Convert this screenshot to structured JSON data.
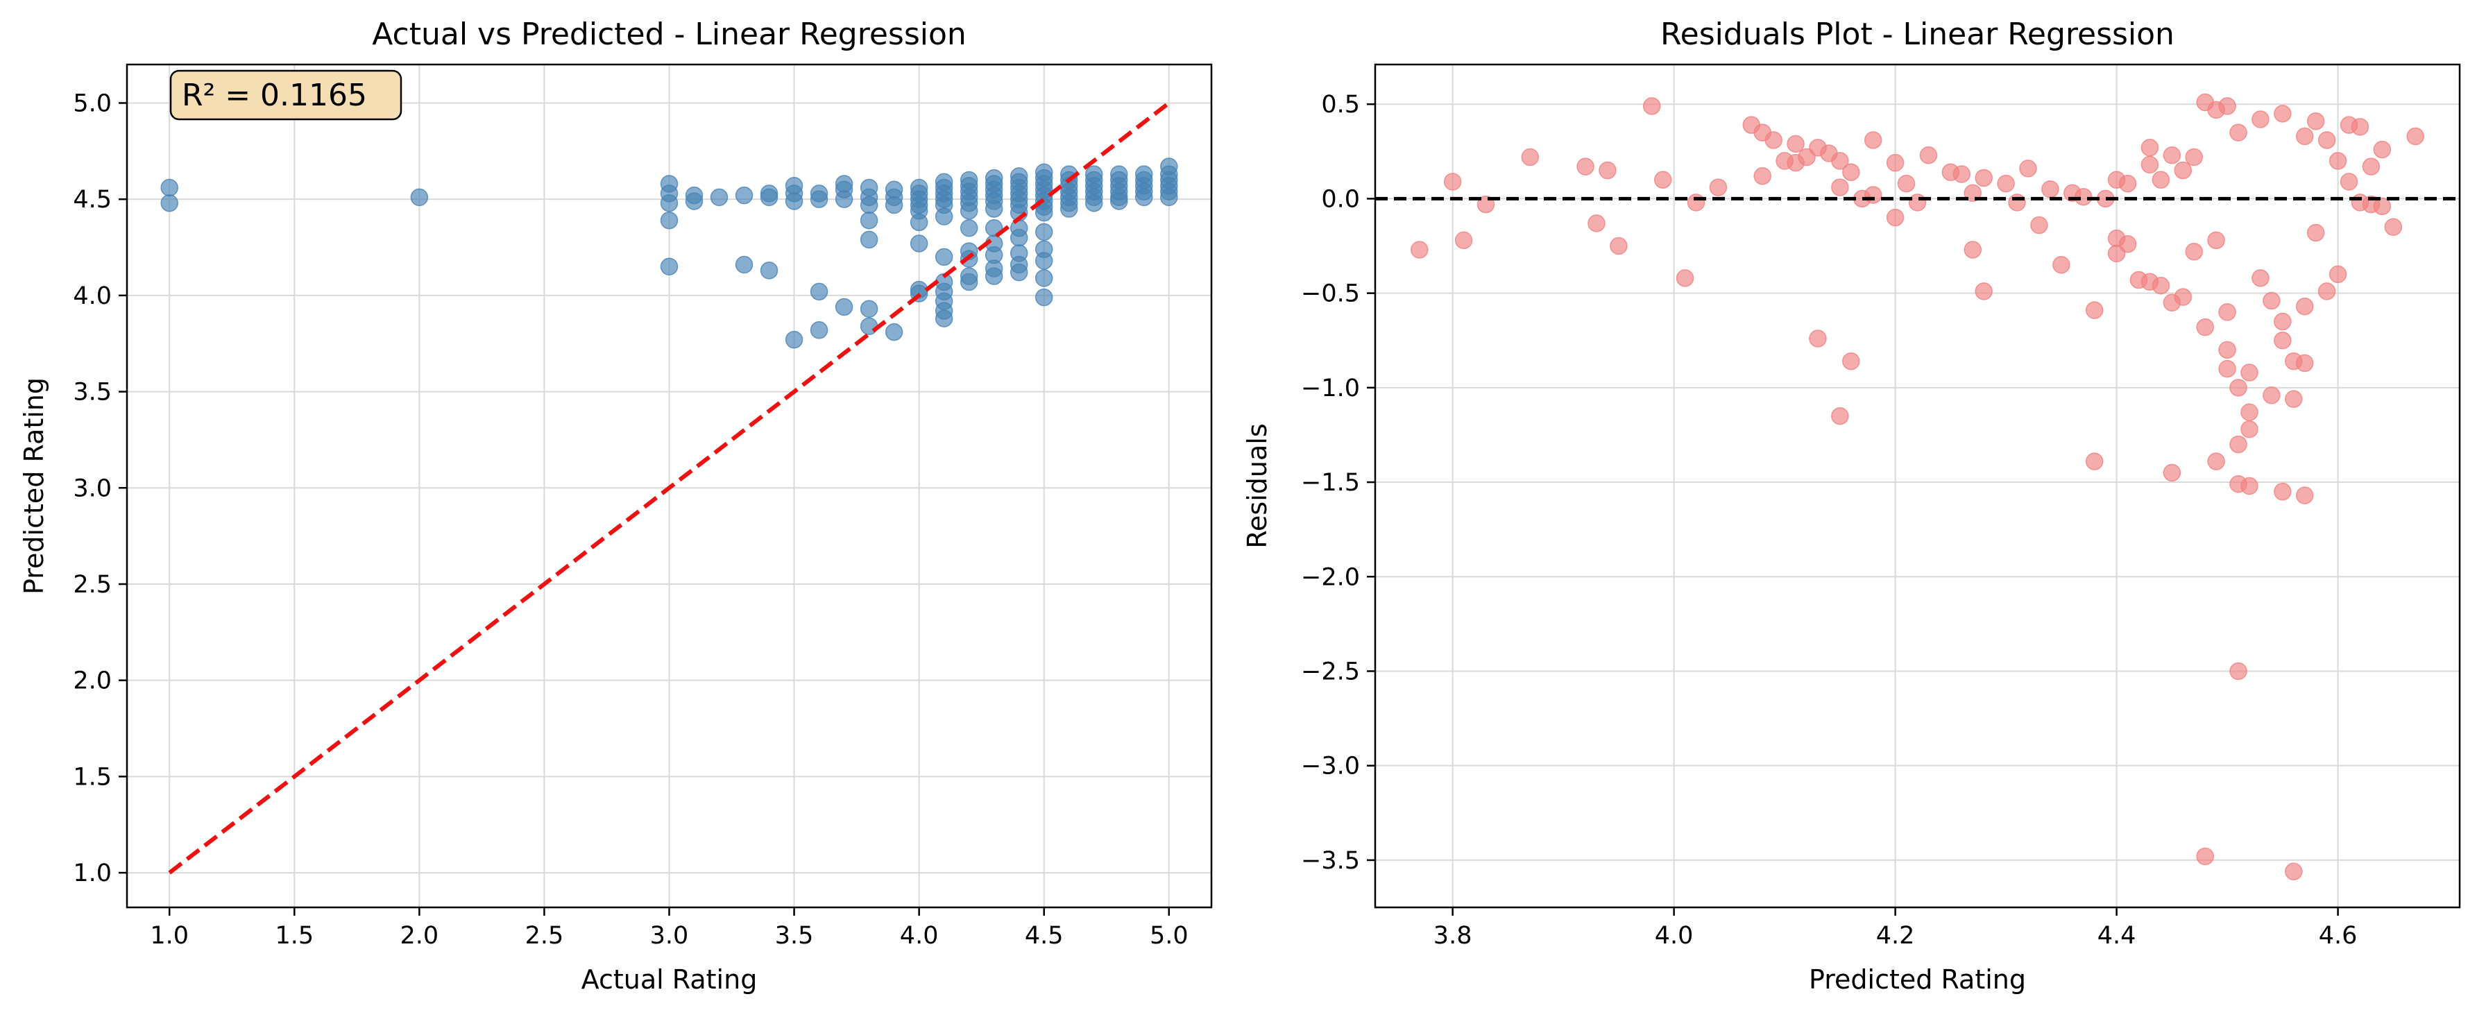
{
  "chart_data": [
    {
      "type": "scatter",
      "title": "Actual vs Predicted - Linear Regression",
      "xlabel": "Actual Rating",
      "ylabel": "Predicted Rating",
      "xlim": [
        0.83,
        5.17
      ],
      "ylim": [
        0.82,
        5.2
      ],
      "xticks": [
        "1.0",
        "1.5",
        "2.0",
        "2.5",
        "3.0",
        "3.5",
        "4.0",
        "4.5",
        "5.0"
      ],
      "yticks": [
        "1.0",
        "1.5",
        "2.0",
        "2.5",
        "3.0",
        "3.5",
        "4.0",
        "4.5",
        "5.0"
      ],
      "grid": true,
      "annotation": "R² = 0.1165",
      "point_color": "#4682b4",
      "reference_line": {
        "x": [
          1.0,
          5.0
        ],
        "y": [
          1.0,
          5.0
        ],
        "color": "#ee1111",
        "style": "dashed"
      },
      "points": [
        [
          1.0,
          4.56
        ],
        [
          1.0,
          4.48
        ],
        [
          2.0,
          4.51
        ],
        [
          3.0,
          4.58
        ],
        [
          3.0,
          4.53
        ],
        [
          3.0,
          4.48
        ],
        [
          3.0,
          4.39
        ],
        [
          3.0,
          4.15
        ],
        [
          3.1,
          4.52
        ],
        [
          3.1,
          4.49
        ],
        [
          3.2,
          4.51
        ],
        [
          3.3,
          4.52
        ],
        [
          3.3,
          4.16
        ],
        [
          3.4,
          4.53
        ],
        [
          3.4,
          4.51
        ],
        [
          3.4,
          4.13
        ],
        [
          3.5,
          4.57
        ],
        [
          3.5,
          4.53
        ],
        [
          3.5,
          4.49
        ],
        [
          3.5,
          3.77
        ],
        [
          3.6,
          4.53
        ],
        [
          3.6,
          4.5
        ],
        [
          3.6,
          4.02
        ],
        [
          3.6,
          3.82
        ],
        [
          3.7,
          4.58
        ],
        [
          3.7,
          4.55
        ],
        [
          3.7,
          4.5
        ],
        [
          3.7,
          3.94
        ],
        [
          3.8,
          4.56
        ],
        [
          3.8,
          4.51
        ],
        [
          3.8,
          4.47
        ],
        [
          3.8,
          4.39
        ],
        [
          3.8,
          4.29
        ],
        [
          3.8,
          3.93
        ],
        [
          3.8,
          3.84
        ],
        [
          3.9,
          4.55
        ],
        [
          3.9,
          4.51
        ],
        [
          3.9,
          4.47
        ],
        [
          3.9,
          3.81
        ],
        [
          4.0,
          4.56
        ],
        [
          4.0,
          4.53
        ],
        [
          4.0,
          4.5
        ],
        [
          4.0,
          4.47
        ],
        [
          4.0,
          4.44
        ],
        [
          4.0,
          4.38
        ],
        [
          4.0,
          4.27
        ],
        [
          4.0,
          4.03
        ],
        [
          4.0,
          4.01
        ],
        [
          4.1,
          4.59
        ],
        [
          4.1,
          4.56
        ],
        [
          4.1,
          4.53
        ],
        [
          4.1,
          4.5
        ],
        [
          4.1,
          4.47
        ],
        [
          4.1,
          4.41
        ],
        [
          4.1,
          4.2
        ],
        [
          4.1,
          4.07
        ],
        [
          4.1,
          4.02
        ],
        [
          4.1,
          3.97
        ],
        [
          4.1,
          3.92
        ],
        [
          4.1,
          3.88
        ],
        [
          4.2,
          4.6
        ],
        [
          4.2,
          4.57
        ],
        [
          4.2,
          4.54
        ],
        [
          4.2,
          4.51
        ],
        [
          4.2,
          4.48
        ],
        [
          4.2,
          4.44
        ],
        [
          4.2,
          4.35
        ],
        [
          4.2,
          4.23
        ],
        [
          4.2,
          4.19
        ],
        [
          4.2,
          4.1
        ],
        [
          4.2,
          4.07
        ],
        [
          4.3,
          4.61
        ],
        [
          4.3,
          4.58
        ],
        [
          4.3,
          4.55
        ],
        [
          4.3,
          4.52
        ],
        [
          4.3,
          4.49
        ],
        [
          4.3,
          4.45
        ],
        [
          4.3,
          4.35
        ],
        [
          4.3,
          4.27
        ],
        [
          4.3,
          4.21
        ],
        [
          4.3,
          4.14
        ],
        [
          4.3,
          4.1
        ],
        [
          4.4,
          4.62
        ],
        [
          4.4,
          4.59
        ],
        [
          4.4,
          4.56
        ],
        [
          4.4,
          4.53
        ],
        [
          4.4,
          4.5
        ],
        [
          4.4,
          4.47
        ],
        [
          4.4,
          4.43
        ],
        [
          4.4,
          4.35
        ],
        [
          4.4,
          4.3
        ],
        [
          4.4,
          4.22
        ],
        [
          4.4,
          4.16
        ],
        [
          4.4,
          4.12
        ],
        [
          4.5,
          4.64
        ],
        [
          4.5,
          4.61
        ],
        [
          4.5,
          4.58
        ],
        [
          4.5,
          4.55
        ],
        [
          4.5,
          4.52
        ],
        [
          4.5,
          4.49
        ],
        [
          4.5,
          4.46
        ],
        [
          4.5,
          4.43
        ],
        [
          4.5,
          4.33
        ],
        [
          4.5,
          4.24
        ],
        [
          4.5,
          4.18
        ],
        [
          4.5,
          4.09
        ],
        [
          4.5,
          3.99
        ],
        [
          4.6,
          4.63
        ],
        [
          4.6,
          4.6
        ],
        [
          4.6,
          4.57
        ],
        [
          4.6,
          4.54
        ],
        [
          4.6,
          4.51
        ],
        [
          4.6,
          4.48
        ],
        [
          4.6,
          4.45
        ],
        [
          4.7,
          4.63
        ],
        [
          4.7,
          4.6
        ],
        [
          4.7,
          4.57
        ],
        [
          4.7,
          4.54
        ],
        [
          4.7,
          4.51
        ],
        [
          4.7,
          4.48
        ],
        [
          4.8,
          4.63
        ],
        [
          4.8,
          4.6
        ],
        [
          4.8,
          4.57
        ],
        [
          4.8,
          4.54
        ],
        [
          4.8,
          4.51
        ],
        [
          4.8,
          4.49
        ],
        [
          4.9,
          4.63
        ],
        [
          4.9,
          4.6
        ],
        [
          4.9,
          4.57
        ],
        [
          4.9,
          4.54
        ],
        [
          4.9,
          4.51
        ],
        [
          5.0,
          4.67
        ],
        [
          5.0,
          4.63
        ],
        [
          5.0,
          4.6
        ],
        [
          5.0,
          4.57
        ],
        [
          5.0,
          4.54
        ],
        [
          5.0,
          4.51
        ]
      ]
    },
    {
      "type": "scatter",
      "title": "Residuals Plot - Linear Regression",
      "xlabel": "Predicted Rating",
      "ylabel": "Residuals",
      "xlim": [
        3.73,
        4.71
      ],
      "ylim": [
        -3.75,
        0.71
      ],
      "xticks": [
        "3.8",
        "4.0",
        "4.2",
        "4.4",
        "4.6"
      ],
      "yticks": [
        "0.5",
        "0.0",
        "−0.5",
        "−1.0",
        "−1.5",
        "−2.0",
        "−2.5",
        "−3.0",
        "−3.5"
      ],
      "grid": true,
      "point_color": "#f08080",
      "reference_line": {
        "y": 0.0,
        "color": "#000000",
        "style": "dashed"
      },
      "points": [
        [
          3.77,
          -0.27
        ],
        [
          3.8,
          0.09
        ],
        [
          3.81,
          -0.22
        ],
        [
          3.83,
          -0.03
        ],
        [
          3.87,
          0.22
        ],
        [
          3.92,
          0.17
        ],
        [
          3.93,
          -0.13
        ],
        [
          3.94,
          0.15
        ],
        [
          3.95,
          -0.25
        ],
        [
          3.98,
          0.49
        ],
        [
          3.99,
          0.1
        ],
        [
          4.01,
          -0.42
        ],
        [
          4.02,
          -0.02
        ],
        [
          4.04,
          0.06
        ],
        [
          4.07,
          0.39
        ],
        [
          4.08,
          0.35
        ],
        [
          4.08,
          0.12
        ],
        [
          4.09,
          0.31
        ],
        [
          4.1,
          0.2
        ],
        [
          4.11,
          0.29
        ],
        [
          4.11,
          0.19
        ],
        [
          4.12,
          0.22
        ],
        [
          4.13,
          0.27
        ],
        [
          4.13,
          -0.74
        ],
        [
          4.14,
          0.24
        ],
        [
          4.15,
          0.2
        ],
        [
          4.15,
          0.06
        ],
        [
          4.15,
          -1.15
        ],
        [
          4.16,
          0.14
        ],
        [
          4.16,
          -0.86
        ],
        [
          4.17,
          0.0
        ],
        [
          4.18,
          0.31
        ],
        [
          4.18,
          0.02
        ],
        [
          4.2,
          0.19
        ],
        [
          4.2,
          -0.1
        ],
        [
          4.21,
          0.08
        ],
        [
          4.22,
          -0.02
        ],
        [
          4.23,
          0.23
        ],
        [
          4.25,
          0.14
        ],
        [
          4.26,
          0.13
        ],
        [
          4.27,
          0.03
        ],
        [
          4.27,
          -0.27
        ],
        [
          4.28,
          0.11
        ],
        [
          4.28,
          -0.49
        ],
        [
          4.3,
          0.08
        ],
        [
          4.31,
          -0.02
        ],
        [
          4.32,
          0.16
        ],
        [
          4.33,
          -0.14
        ],
        [
          4.34,
          0.05
        ],
        [
          4.35,
          -0.35
        ],
        [
          4.36,
          0.03
        ],
        [
          4.37,
          0.01
        ],
        [
          4.38,
          -0.59
        ],
        [
          4.38,
          -1.39
        ],
        [
          4.39,
          0.0
        ],
        [
          4.4,
          0.1
        ],
        [
          4.4,
          -0.21
        ],
        [
          4.4,
          -0.29
        ],
        [
          4.41,
          0.08
        ],
        [
          4.41,
          -0.24
        ],
        [
          4.42,
          -0.43
        ],
        [
          4.43,
          0.27
        ],
        [
          4.43,
          0.18
        ],
        [
          4.43,
          -0.44
        ],
        [
          4.44,
          0.1
        ],
        [
          4.44,
          -0.46
        ],
        [
          4.45,
          -0.55
        ],
        [
          4.45,
          -1.45
        ],
        [
          4.45,
          0.23
        ],
        [
          4.46,
          0.15
        ],
        [
          4.46,
          -0.52
        ],
        [
          4.47,
          0.22
        ],
        [
          4.47,
          -0.28
        ],
        [
          4.48,
          -0.68
        ],
        [
          4.48,
          0.51
        ],
        [
          4.48,
          -3.48
        ],
        [
          4.49,
          0.47
        ],
        [
          4.49,
          -1.39
        ],
        [
          4.49,
          -0.22
        ],
        [
          4.5,
          0.49
        ],
        [
          4.5,
          -0.8
        ],
        [
          4.5,
          -0.9
        ],
        [
          4.5,
          -0.6
        ],
        [
          4.51,
          -1.0
        ],
        [
          4.51,
          -1.3
        ],
        [
          4.51,
          -1.51
        ],
        [
          4.51,
          -2.5
        ],
        [
          4.51,
          0.35
        ],
        [
          4.52,
          -0.92
        ],
        [
          4.52,
          -1.22
        ],
        [
          4.52,
          -1.52
        ],
        [
          4.52,
          -1.13
        ],
        [
          4.53,
          0.42
        ],
        [
          4.53,
          -0.42
        ],
        [
          4.54,
          -1.04
        ],
        [
          4.54,
          -0.54
        ],
        [
          4.55,
          0.45
        ],
        [
          4.55,
          -0.75
        ],
        [
          4.55,
          -1.55
        ],
        [
          4.55,
          -0.65
        ],
        [
          4.56,
          -3.56
        ],
        [
          4.56,
          -1.06
        ],
        [
          4.56,
          -0.86
        ],
        [
          4.57,
          -0.57
        ],
        [
          4.57,
          0.33
        ],
        [
          4.57,
          -1.57
        ],
        [
          4.57,
          -0.87
        ],
        [
          4.58,
          0.41
        ],
        [
          4.58,
          -0.18
        ],
        [
          4.59,
          -0.49
        ],
        [
          4.59,
          0.31
        ],
        [
          4.6,
          -0.4
        ],
        [
          4.6,
          0.2
        ],
        [
          4.61,
          0.39
        ],
        [
          4.61,
          0.09
        ],
        [
          4.62,
          0.38
        ],
        [
          4.62,
          -0.02
        ],
        [
          4.63,
          0.17
        ],
        [
          4.63,
          -0.03
        ],
        [
          4.64,
          -0.04
        ],
        [
          4.64,
          0.26
        ],
        [
          4.65,
          -0.15
        ],
        [
          4.67,
          0.33
        ]
      ]
    }
  ]
}
